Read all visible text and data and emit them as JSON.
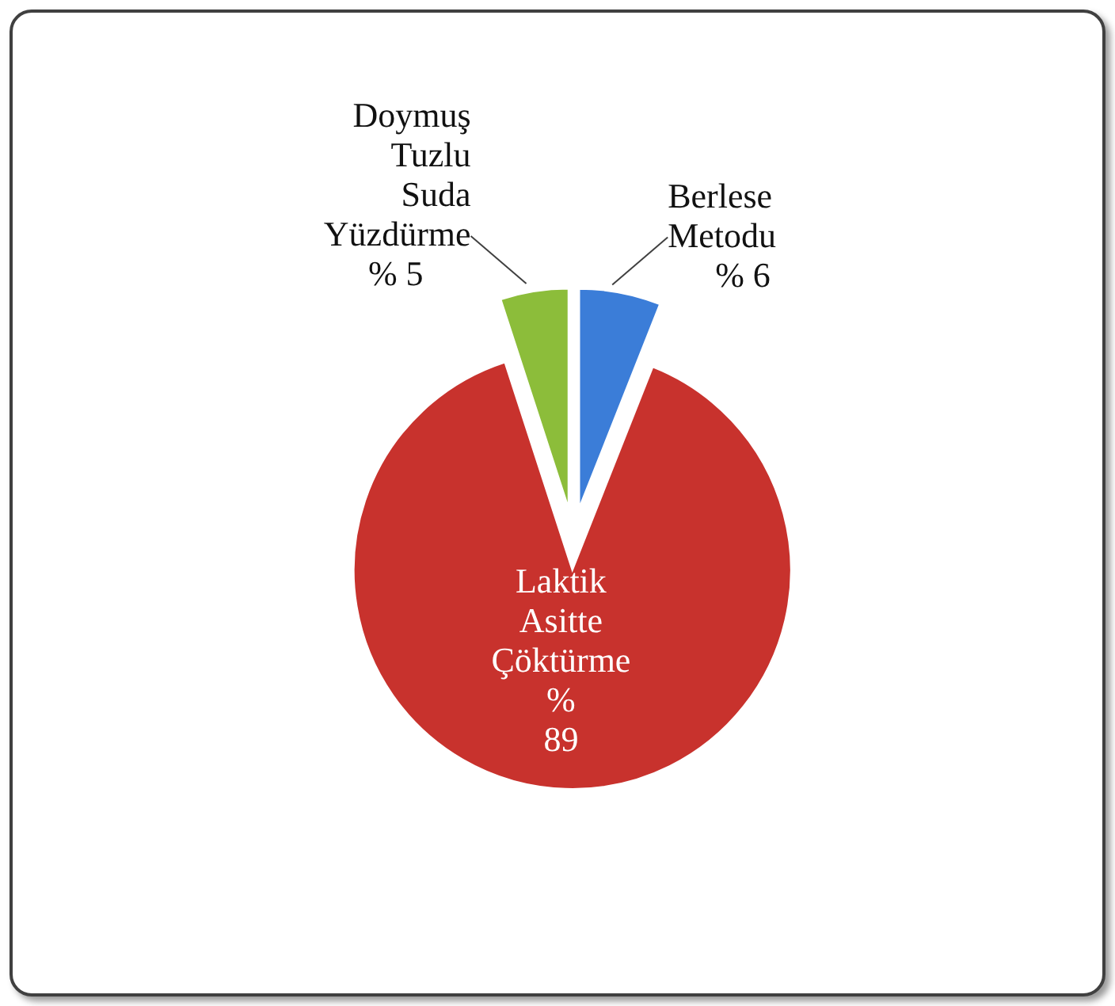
{
  "chart_data": {
    "type": "pie",
    "categories": [
      "Berlese Metodu",
      "Laktik Asitte Çöktürme",
      "Doymuş Tuzlu Suda Yüzdürme"
    ],
    "values": [
      6,
      89,
      5
    ],
    "colors": [
      "#3b7dd8",
      "#c8322d",
      "#8cbd3a"
    ],
    "value_labels": [
      "% 6",
      "% 89",
      "% 5"
    ]
  }
}
